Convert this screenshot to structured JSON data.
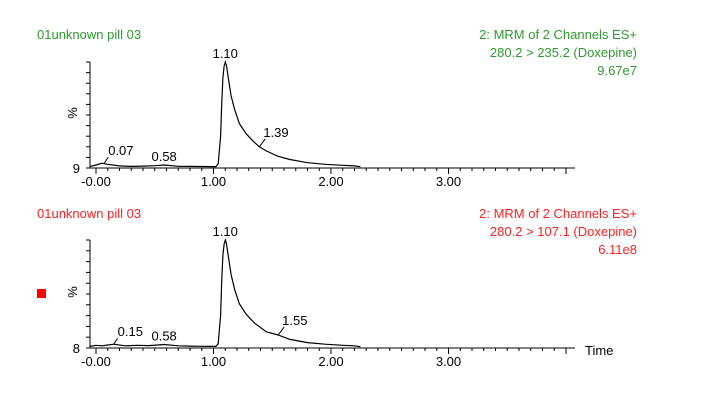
{
  "colors": {
    "panel1": "#2e9a2e",
    "panel2": "#ff2020",
    "trace": "#000000",
    "marker": "#ff0000"
  },
  "x_axis_title": "Time",
  "chart_data": [
    {
      "type": "line",
      "sample": "01unknown pill 03",
      "header": [
        "2: MRM of 2 Channels ES+",
        "280.2 > 235.2 (Doxepine)",
        "9.67e7"
      ],
      "ylabel": "%",
      "baseline_label": "9",
      "xlim": [
        -0.05,
        4.0
      ],
      "ylim": [
        0,
        100
      ],
      "x_ticks": [
        -0.0,
        1.0,
        2.0,
        3.0
      ],
      "x_tick_labels": [
        "-0.00",
        "1.00",
        "2.00",
        "3.00"
      ],
      "series": [
        {
          "name": "280.2 > 235.2 (Doxepine)",
          "x": [
            -0.05,
            0.0,
            0.05,
            0.1,
            0.2,
            0.3,
            0.4,
            0.5,
            0.58,
            0.7,
            0.8,
            0.9,
            1.0,
            1.02,
            1.04,
            1.06,
            1.07,
            1.08,
            1.09,
            1.1,
            1.11,
            1.13,
            1.15,
            1.18,
            1.22,
            1.28,
            1.35,
            1.39,
            1.45,
            1.55,
            1.65,
            1.8,
            1.95,
            2.1,
            2.2,
            2.25
          ],
          "y": [
            1.5,
            2.8,
            4.5,
            3.5,
            2.0,
            1.5,
            1.8,
            2.2,
            2.8,
            1.6,
            1.5,
            1.4,
            1.3,
            1.3,
            4,
            30,
            60,
            85,
            96,
            100,
            97,
            82,
            68,
            55,
            42,
            32,
            24,
            20,
            16,
            11,
            8,
            5,
            3.5,
            2.5,
            2.0,
            1.2
          ]
        }
      ],
      "peak_labels": [
        {
          "text": "1.10",
          "x": 1.1,
          "y": 100
        },
        {
          "text": "0.07",
          "x": 0.07,
          "y": 4.5
        },
        {
          "text": "0.58",
          "x": 0.58,
          "y": 2.8
        },
        {
          "text": "1.39",
          "x": 1.39,
          "y": 20
        }
      ]
    },
    {
      "type": "line",
      "sample": "01unknown pill 03",
      "header": [
        "2: MRM of 2 Channels ES+",
        "280.2 > 107.1 (Doxepine)",
        "6.11e8"
      ],
      "ylabel": "%",
      "baseline_label": "8",
      "xlim": [
        -0.05,
        4.0
      ],
      "ylim": [
        0,
        100
      ],
      "x_ticks": [
        -0.0,
        1.0,
        2.0,
        3.0
      ],
      "x_tick_labels": [
        "-0.00",
        "1.00",
        "2.00",
        "3.00"
      ],
      "series": [
        {
          "name": "280.2 > 107.1 (Doxepine)",
          "x": [
            -0.05,
            0.0,
            0.05,
            0.1,
            0.15,
            0.25,
            0.35,
            0.45,
            0.58,
            0.7,
            0.8,
            0.9,
            1.0,
            1.02,
            1.04,
            1.06,
            1.07,
            1.08,
            1.09,
            1.1,
            1.11,
            1.13,
            1.15,
            1.18,
            1.22,
            1.28,
            1.35,
            1.45,
            1.55,
            1.65,
            1.8,
            1.95,
            2.1,
            2.2,
            2.25
          ],
          "y": [
            1.5,
            2.5,
            2.0,
            2.8,
            3.5,
            2.0,
            2.5,
            2.2,
            3.2,
            2.0,
            1.8,
            1.6,
            1.5,
            1.5,
            4,
            30,
            62,
            86,
            96,
            100,
            97,
            82,
            68,
            54,
            41,
            31,
            23,
            15,
            12,
            8,
            5,
            3.5,
            2.5,
            2.0,
            1.2
          ]
        }
      ],
      "peak_labels": [
        {
          "text": "1.10",
          "x": 1.1,
          "y": 100
        },
        {
          "text": "0.15",
          "x": 0.15,
          "y": 3.5
        },
        {
          "text": "0.58",
          "x": 0.58,
          "y": 3.2
        },
        {
          "text": "1.55",
          "x": 1.55,
          "y": 12
        }
      ]
    }
  ]
}
